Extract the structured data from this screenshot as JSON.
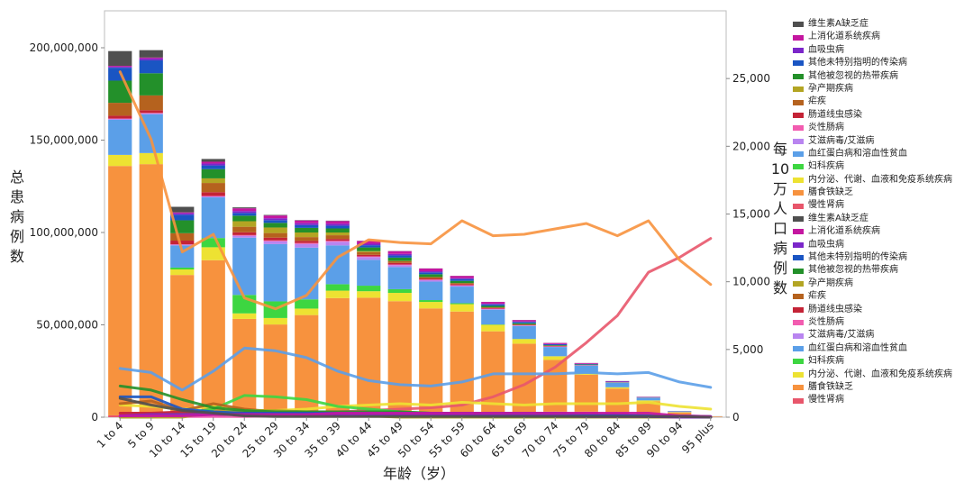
{
  "chart_data": {
    "type": "bar",
    "xlabel": "年龄（岁）",
    "ylabel_left": "总患病例数",
    "ylabel_right": "每10万人口病例数",
    "categories": [
      "1 to 4",
      "5 to 9",
      "10 to 14",
      "15 to 19",
      "20 to 24",
      "25 to 29",
      "30 to 34",
      "35 to 39",
      "40 to 44",
      "45 to 49",
      "50 to 54",
      "55 to 59",
      "60 to 64",
      "65 to 69",
      "70 to 74",
      "75 to 79",
      "80 to 84",
      "85 to 89",
      "90 to 94",
      "95 plus"
    ],
    "ylim_left": [
      0,
      220000000
    ],
    "yticks_left": [
      "0",
      "50,000,000",
      "100,000,000",
      "150,000,000",
      "200,000,000"
    ],
    "ylim_right": [
      0,
      30000
    ],
    "yticks_right": [
      "0",
      "5,000",
      "10,000",
      "15,000",
      "20,000",
      "25,000"
    ],
    "grid": false,
    "legend_position": "right",
    "bar_series": [
      {
        "name": "慢性肾病",
        "color": "#e8566b",
        "values": [
          1000000,
          1000000,
          1000000,
          1000000,
          1200000,
          1200000,
          1300000,
          1500000,
          1700000,
          1800000,
          1900000,
          2200000,
          2500000,
          2800000,
          3000000,
          3000000,
          2500000,
          1600000,
          600000,
          100000
        ]
      },
      {
        "name": "膳食铁缺乏",
        "color": "#f7923e",
        "values": [
          135000000,
          136000000,
          76000000,
          84000000,
          52000000,
          49000000,
          54000000,
          63000000,
          63000000,
          61000000,
          57000000,
          55000000,
          44000000,
          37000000,
          28000000,
          20000000,
          13000000,
          7000000,
          2000000,
          300000
        ]
      },
      {
        "name": "内分泌、代谢、血液和免疫系统疾病",
        "color": "#ede232",
        "values": [
          6000000,
          6000000,
          3000000,
          7000000,
          3000000,
          3500000,
          3500000,
          4000000,
          3500000,
          4500000,
          3500000,
          4000000,
          3500000,
          2500000,
          2000000,
          1000000,
          700000,
          500000,
          200000,
          50000
        ]
      },
      {
        "name": "妇科疾病",
        "color": "#3dd641",
        "values": [
          0,
          0,
          1000000,
          5000000,
          10000000,
          9000000,
          5000000,
          3500000,
          3000000,
          2000000,
          1000000,
          500000,
          200000,
          100000,
          0,
          0,
          0,
          0,
          0,
          0
        ]
      },
      {
        "name": "血红蛋白病和溶血性贫血",
        "color": "#5b9fe8",
        "values": [
          19000000,
          21000000,
          12000000,
          22000000,
          31000000,
          31000000,
          28000000,
          21000000,
          14000000,
          12000000,
          10000000,
          9000000,
          8000000,
          7000000,
          5000000,
          4000000,
          2500000,
          1500000,
          400000,
          80000
        ]
      },
      {
        "name": "艾滋病毒/艾滋病",
        "color": "#b985f0",
        "values": [
          500000,
          500000,
          400000,
          500000,
          1000000,
          1500000,
          2000000,
          2000000,
          1500000,
          1000000,
          800000,
          500000,
          300000,
          200000,
          100000,
          50000,
          20000,
          10000,
          0,
          0
        ]
      },
      {
        "name": "炎性肠病",
        "color": "#f25cb0",
        "values": [
          200000,
          200000,
          200000,
          300000,
          400000,
          500000,
          500000,
          500000,
          400000,
          400000,
          300000,
          300000,
          300000,
          200000,
          200000,
          100000,
          100000,
          50000,
          10000,
          0
        ]
      },
      {
        "name": "肠道线虫感染",
        "color": "#c42336",
        "values": [
          1500000,
          1500000,
          2000000,
          2000000,
          1500000,
          1500000,
          1200000,
          1000000,
          800000,
          800000,
          600000,
          500000,
          300000,
          200000,
          200000,
          100000,
          50000,
          20000,
          10000,
          0
        ]
      },
      {
        "name": "疟疾",
        "color": "#b5621e",
        "values": [
          7000000,
          8000000,
          4000000,
          5000000,
          3000000,
          2500000,
          2000000,
          2000000,
          1500000,
          1000000,
          800000,
          600000,
          400000,
          300000,
          200000,
          100000,
          50000,
          20000,
          10000,
          0
        ]
      },
      {
        "name": "孕产期疾病",
        "color": "#b3a523",
        "values": [
          0,
          0,
          0,
          2500000,
          3000000,
          3000000,
          2500000,
          1500000,
          500000,
          100000,
          0,
          0,
          0,
          0,
          0,
          0,
          0,
          0,
          0,
          0
        ]
      },
      {
        "name": "其他被忽视的热带疾病",
        "color": "#23902a",
        "values": [
          12000000,
          12000000,
          7000000,
          5000000,
          3000000,
          2500000,
          2500000,
          2200000,
          2000000,
          1800000,
          1500000,
          1200000,
          800000,
          600000,
          300000,
          200000,
          100000,
          50000,
          20000,
          0
        ]
      },
      {
        "name": "其他未特别指明的传染病",
        "color": "#1a55c3",
        "values": [
          7000000,
          7000000,
          3000000,
          2000000,
          1500000,
          1500000,
          1500000,
          1500000,
          1200000,
          1200000,
          1000000,
          1000000,
          800000,
          700000,
          500000,
          300000,
          200000,
          100000,
          50000,
          0
        ]
      },
      {
        "name": "血吸虫病",
        "color": "#7b26c9",
        "values": [
          500000,
          1000000,
          800000,
          1000000,
          1000000,
          1000000,
          1000000,
          1000000,
          800000,
          800000,
          600000,
          500000,
          300000,
          200000,
          100000,
          50000,
          20000,
          10000,
          0,
          0
        ]
      },
      {
        "name": "上消化道系统疾病",
        "color": "#c416a0",
        "values": [
          500000,
          500000,
          500000,
          1000000,
          1500000,
          1500000,
          1500000,
          1500000,
          1500000,
          1500000,
          1500000,
          1200000,
          1000000,
          800000,
          600000,
          400000,
          300000,
          200000,
          50000,
          10000
        ]
      },
      {
        "name": "维生素A缺乏症",
        "color": "#4f4f4f",
        "values": [
          8000000,
          4000000,
          3000000,
          1500000,
          500000,
          300000,
          200000,
          200000,
          100000,
          100000,
          50000,
          50000,
          50000,
          50000,
          50000,
          50000,
          50000,
          50000,
          10000,
          0
        ]
      }
    ],
    "line_series": [
      {
        "name": "慢性肾病",
        "color": "#e8566b",
        "values": [
          300,
          300,
          300,
          300,
          400,
          400,
          400,
          400,
          500,
          600,
          700,
          900,
          1500,
          2400,
          3700,
          5500,
          7500,
          10700,
          11800,
          13200
        ]
      },
      {
        "name": "膳食铁缺乏",
        "color": "#f7923e",
        "values": [
          25500,
          20500,
          12200,
          13500,
          8800,
          8000,
          9000,
          11800,
          13100,
          12900,
          12800,
          14500,
          13400,
          13500,
          13900,
          14300,
          13400,
          14500,
          11600,
          9800
        ]
      },
      {
        "name": "内分泌、代谢、血液和免疫系统疾病",
        "color": "#ede232",
        "values": [
          900,
          800,
          600,
          800,
          500,
          500,
          600,
          800,
          900,
          1000,
          900,
          1100,
          1000,
          900,
          1000,
          1000,
          1000,
          1100,
          800,
          600
        ]
      },
      {
        "name": "妇科疾病",
        "color": "#3dd641",
        "values": [
          0,
          0,
          300,
          600,
          1600,
          1500,
          1300,
          800,
          600,
          400,
          300,
          100,
          0,
          0,
          0,
          0,
          0,
          0,
          0,
          0
        ]
      },
      {
        "name": "血红蛋白病和溶血性贫血",
        "color": "#5b9fe8",
        "values": [
          3600,
          3300,
          2000,
          3400,
          5100,
          4900,
          4400,
          3400,
          2700,
          2400,
          2300,
          2600,
          3200,
          3200,
          3200,
          3300,
          3200,
          3300,
          2600,
          2200
        ]
      },
      {
        "name": "艾滋病毒/艾滋病",
        "color": "#b985f0",
        "values": [
          100,
          100,
          100,
          100,
          200,
          200,
          300,
          300,
          300,
          200,
          200,
          100,
          100,
          100,
          100,
          0,
          0,
          0,
          0,
          0
        ]
      },
      {
        "name": "炎性肠病",
        "color": "#f25cb0",
        "values": [
          50,
          50,
          50,
          50,
          50,
          100,
          100,
          100,
          100,
          100,
          100,
          100,
          100,
          100,
          100,
          100,
          100,
          100,
          50,
          50
        ]
      },
      {
        "name": "肠道线虫感染",
        "color": "#c42336",
        "values": [
          300,
          300,
          400,
          300,
          300,
          200,
          200,
          200,
          200,
          200,
          100,
          100,
          100,
          100,
          100,
          100,
          50,
          50,
          50,
          0
        ]
      },
      {
        "name": "疟疾",
        "color": "#b5621e",
        "values": [
          1000,
          1200,
          500,
          1000,
          600,
          400,
          300,
          300,
          300,
          200,
          200,
          100,
          100,
          100,
          100,
          100,
          50,
          50,
          50,
          0
        ]
      },
      {
        "name": "孕产期疾病",
        "color": "#b3a523",
        "values": [
          0,
          0,
          0,
          400,
          500,
          500,
          400,
          300,
          100,
          0,
          0,
          0,
          0,
          0,
          0,
          0,
          0,
          0,
          0,
          0
        ]
      },
      {
        "name": "其他被忽视的热带疾病",
        "color": "#23902a",
        "values": [
          2300,
          2000,
          1300,
          700,
          500,
          400,
          400,
          400,
          400,
          400,
          300,
          300,
          200,
          200,
          100,
          100,
          100,
          50,
          50,
          0
        ]
      },
      {
        "name": "其他未特别指明的传染病",
        "color": "#1a55c3",
        "values": [
          1500,
          1500,
          600,
          400,
          300,
          300,
          300,
          300,
          300,
          300,
          300,
          300,
          300,
          300,
          300,
          200,
          200,
          100,
          100,
          50
        ]
      },
      {
        "name": "血吸虫病",
        "color": "#7b26c9",
        "values": [
          100,
          200,
          200,
          200,
          200,
          200,
          200,
          200,
          200,
          200,
          200,
          200,
          100,
          100,
          100,
          50,
          50,
          50,
          0,
          0
        ]
      },
      {
        "name": "上消化道系统疾病",
        "color": "#c416a0",
        "values": [
          100,
          100,
          100,
          200,
          200,
          200,
          200,
          300,
          300,
          300,
          300,
          300,
          300,
          300,
          300,
          300,
          300,
          300,
          100,
          50
        ]
      },
      {
        "name": "维生素A缺乏症",
        "color": "#4f4f4f",
        "values": [
          1400,
          900,
          500,
          300,
          100,
          50,
          50,
          50,
          50,
          50,
          50,
          50,
          50,
          50,
          50,
          50,
          50,
          50,
          50,
          0
        ]
      }
    ],
    "legend": [
      {
        "name": "维生素A缺乏症",
        "color": "#4f4f4f"
      },
      {
        "name": "上消化道系统疾病",
        "color": "#c416a0"
      },
      {
        "name": "血吸虫病",
        "color": "#7b26c9"
      },
      {
        "name": "其他未特别指明的传染病",
        "color": "#1a55c3"
      },
      {
        "name": "其他被忽视的热带疾病",
        "color": "#23902a"
      },
      {
        "name": "孕产期疾病",
        "color": "#b3a523"
      },
      {
        "name": "疟疾",
        "color": "#b5621e"
      },
      {
        "name": "肠道线虫感染",
        "color": "#c42336"
      },
      {
        "name": "炎性肠病",
        "color": "#f25cb0"
      },
      {
        "name": "艾滋病毒/艾滋病",
        "color": "#b985f0"
      },
      {
        "name": "血红蛋白病和溶血性贫血",
        "color": "#5b9fe8"
      },
      {
        "name": "妇科疾病",
        "color": "#3dd641"
      },
      {
        "name": "内分泌、代谢、血液和免疫系统疾病",
        "color": "#ede232"
      },
      {
        "name": "膳食铁缺乏",
        "color": "#f7923e"
      },
      {
        "name": "慢性肾病",
        "color": "#e8566b"
      },
      {
        "name": "维生素A缺乏症",
        "color": "#4f4f4f"
      },
      {
        "name": "上消化道系统疾病",
        "color": "#c416a0"
      },
      {
        "name": "血吸虫病",
        "color": "#7b26c9"
      },
      {
        "name": "其他未特别指明的传染病",
        "color": "#1a55c3"
      },
      {
        "name": "其他被忽视的热带疾病",
        "color": "#23902a"
      },
      {
        "name": "孕产期疾病",
        "color": "#b3a523"
      },
      {
        "name": "疟疾",
        "color": "#b5621e"
      },
      {
        "name": "肠道线虫感染",
        "color": "#c42336"
      },
      {
        "name": "炎性肠病",
        "color": "#f25cb0"
      },
      {
        "name": "艾滋病毒/艾滋病",
        "color": "#b985f0"
      },
      {
        "name": "血红蛋白病和溶血性贫血",
        "color": "#5b9fe8"
      },
      {
        "name": "妇科疾病",
        "color": "#3dd641"
      },
      {
        "name": "内分泌、代谢、血液和免疫系统疾病",
        "color": "#ede232"
      },
      {
        "name": "膳食铁缺乏",
        "color": "#f7923e"
      },
      {
        "name": "慢性肾病",
        "color": "#e8566b"
      }
    ]
  }
}
